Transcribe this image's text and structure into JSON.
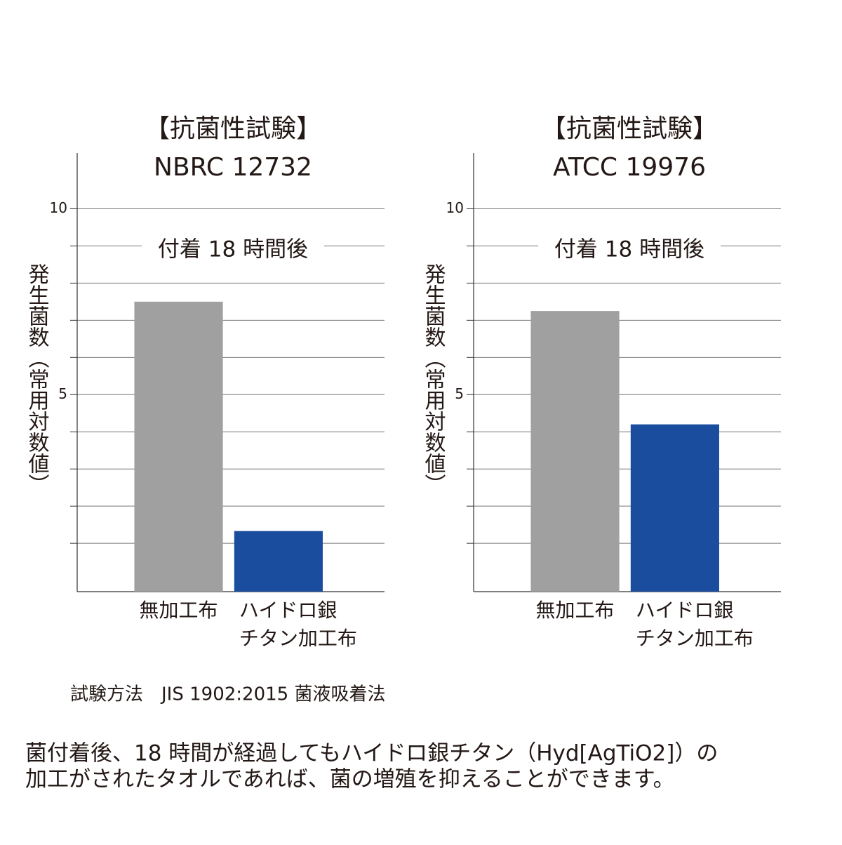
{
  "chart_data": [
    {
      "type": "bar",
      "title": "【抗菌性試験】",
      "subtitle": "NBRC 12732",
      "annotation": "付着 18 時間後",
      "y_label": "発生菌数（常用対数値）",
      "categories": [
        [
          "無加工布"
        ],
        [
          "ハイドロ銀",
          "チタン加工布"
        ]
      ],
      "values": [
        7.5,
        1.33
      ],
      "colors": [
        "#a0a0a0",
        "#1b4d9e"
      ],
      "ylim": [
        -0.3,
        11.5
      ],
      "yticks": [
        5,
        10
      ],
      "minor_yticks": [
        1,
        2,
        3,
        4,
        6,
        7,
        8,
        9
      ],
      "grid": true
    },
    {
      "type": "bar",
      "title": "【抗菌性試験】",
      "subtitle": "ATCC 19976",
      "annotation": "付着 18 時間後",
      "y_label": "発生菌数（常用対数値）",
      "categories": [
        [
          "無加工布"
        ],
        [
          "ハイドロ銀",
          "チタン加工布"
        ]
      ],
      "values": [
        7.25,
        4.2
      ],
      "colors": [
        "#a0a0a0",
        "#1b4d9e"
      ],
      "ylim": [
        -0.3,
        11.5
      ],
      "yticks": [
        5,
        10
      ],
      "minor_yticks": [
        1,
        2,
        3,
        4,
        6,
        7,
        8,
        9
      ],
      "grid": true
    }
  ],
  "notes": {
    "method": "試験方法　JIS 1902:2015 菌液吸着法",
    "description": [
      "菌付着後、18 時間が経過してもハイドロ銀チタン（Hyd[AgTiO2]）の",
      "加工がされたタオルであれば、菌の増殖を抑えることができます。"
    ]
  }
}
